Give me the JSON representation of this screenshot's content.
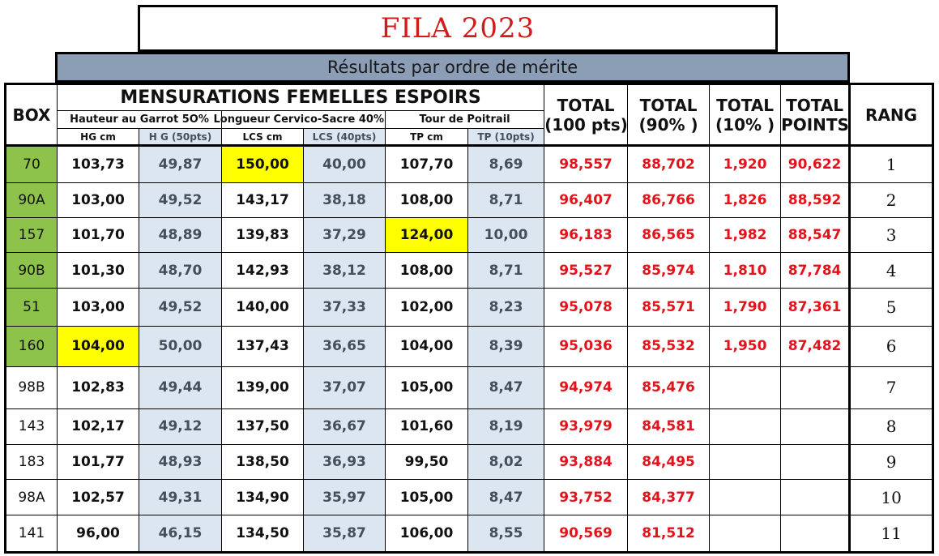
{
  "title": "FILA 2023",
  "subtitle": "Résultats par ordre de mérite",
  "colors": {
    "title_red": "#d11c1c",
    "subtitle_bg": "#8c9db6",
    "box_green": "#8dc34a",
    "highlight_yellow": "#ffff00",
    "shade_blue": "#dce6f1",
    "value_red": "#e0141a"
  },
  "headers": {
    "box": "BOX",
    "mensurations": "MENSURATIONS FEMELLES ESPOIRS",
    "hauteur_group": "Hauteur au Garrot 5O%",
    "longueur_group": "Longueur Cervico-Sacre 40%",
    "tour_group": "Tour de Poitrail",
    "hg_cm": "HG cm",
    "hg_pts": "H G (50pts)",
    "lcs_cm": "LCS cm",
    "lcs_pts": "LCS (40pts)",
    "tp_cm": "TP cm",
    "tp_pts": "TP (10pts)",
    "total_100": [
      "TOTAL",
      "(100 pts)"
    ],
    "total_90": [
      "TOTAL",
      "(90% )"
    ],
    "total_10": [
      "TOTAL",
      "(10% )"
    ],
    "total_points": [
      "TOTAL",
      "POINTS"
    ],
    "rang": "RANG"
  },
  "rows": [
    {
      "box": "70",
      "box_green": true,
      "hg_cm": "103,73",
      "hg_pts": "49,87",
      "lcs_cm": "150,00",
      "lcs_pts": "40,00",
      "tp_cm": "107,70",
      "tp_pts": "8,69",
      "total_100": "98,557",
      "total_90": "88,702",
      "total_10": "1,920",
      "total_points": "90,622",
      "rang": "1",
      "highlight": "lcs_cm"
    },
    {
      "box": "90A",
      "box_green": true,
      "hg_cm": "103,00",
      "hg_pts": "49,52",
      "lcs_cm": "143,17",
      "lcs_pts": "38,18",
      "tp_cm": "108,00",
      "tp_pts": "8,71",
      "total_100": "96,407",
      "total_90": "86,766",
      "total_10": "1,826",
      "total_points": "88,592",
      "rang": "2",
      "highlight": ""
    },
    {
      "box": "157",
      "box_green": true,
      "hg_cm": "101,70",
      "hg_pts": "48,89",
      "lcs_cm": "139,83",
      "lcs_pts": "37,29",
      "tp_cm": "124,00",
      "tp_pts": "10,00",
      "total_100": "96,183",
      "total_90": "86,565",
      "total_10": "1,982",
      "total_points": "88,547",
      "rang": "3",
      "highlight": "tp_cm"
    },
    {
      "box": "90B",
      "box_green": true,
      "hg_cm": "101,30",
      "hg_pts": "48,70",
      "lcs_cm": "142,93",
      "lcs_pts": "38,12",
      "tp_cm": "108,00",
      "tp_pts": "8,71",
      "total_100": "95,527",
      "total_90": "85,974",
      "total_10": "1,810",
      "total_points": "87,784",
      "rang": "4",
      "highlight": ""
    },
    {
      "box": "51",
      "box_green": true,
      "hg_cm": "103,00",
      "hg_pts": "49,52",
      "lcs_cm": "140,00",
      "lcs_pts": "37,33",
      "tp_cm": "102,00",
      "tp_pts": "8,23",
      "total_100": "95,078",
      "total_90": "85,571",
      "total_10": "1,790",
      "total_points": "87,361",
      "rang": "5",
      "highlight": ""
    },
    {
      "box": "160",
      "box_green": true,
      "hg_cm": "104,00",
      "hg_pts": "50,00",
      "lcs_cm": "137,43",
      "lcs_pts": "36,65",
      "tp_cm": "104,00",
      "tp_pts": "8,39",
      "total_100": "95,036",
      "total_90": "85,532",
      "total_10": "1,950",
      "total_points": "87,482",
      "rang": "6",
      "highlight": "hg_cm"
    },
    {
      "box": "98B",
      "box_green": false,
      "hg_cm": "102,83",
      "hg_pts": "49,44",
      "lcs_cm": "139,00",
      "lcs_pts": "37,07",
      "tp_cm": "105,00",
      "tp_pts": "8,47",
      "total_100": "94,974",
      "total_90": "85,476",
      "total_10": "",
      "total_points": "",
      "rang": "7",
      "highlight": ""
    },
    {
      "box": "143",
      "box_green": false,
      "hg_cm": "102,17",
      "hg_pts": "49,12",
      "lcs_cm": "137,50",
      "lcs_pts": "36,67",
      "tp_cm": "101,60",
      "tp_pts": "8,19",
      "total_100": "93,979",
      "total_90": "84,581",
      "total_10": "",
      "total_points": "",
      "rang": "8",
      "highlight": ""
    },
    {
      "box": "183",
      "box_green": false,
      "hg_cm": "101,77",
      "hg_pts": "48,93",
      "lcs_cm": "138,50",
      "lcs_pts": "36,93",
      "tp_cm": "99,50",
      "tp_pts": "8,02",
      "total_100": "93,884",
      "total_90": "84,495",
      "total_10": "",
      "total_points": "",
      "rang": "9",
      "highlight": ""
    },
    {
      "box": "98A",
      "box_green": false,
      "hg_cm": "102,57",
      "hg_pts": "49,31",
      "lcs_cm": "134,90",
      "lcs_pts": "35,97",
      "tp_cm": "105,00",
      "tp_pts": "8,47",
      "total_100": "93,752",
      "total_90": "84,377",
      "total_10": "",
      "total_points": "",
      "rang": "10",
      "highlight": ""
    },
    {
      "box": "141",
      "box_green": false,
      "hg_cm": "96,00",
      "hg_pts": "46,15",
      "lcs_cm": "134,50",
      "lcs_pts": "35,87",
      "tp_cm": "106,00",
      "tp_pts": "8,55",
      "total_100": "90,569",
      "total_90": "81,512",
      "total_10": "",
      "total_points": "",
      "rang": "11",
      "highlight": ""
    }
  ]
}
